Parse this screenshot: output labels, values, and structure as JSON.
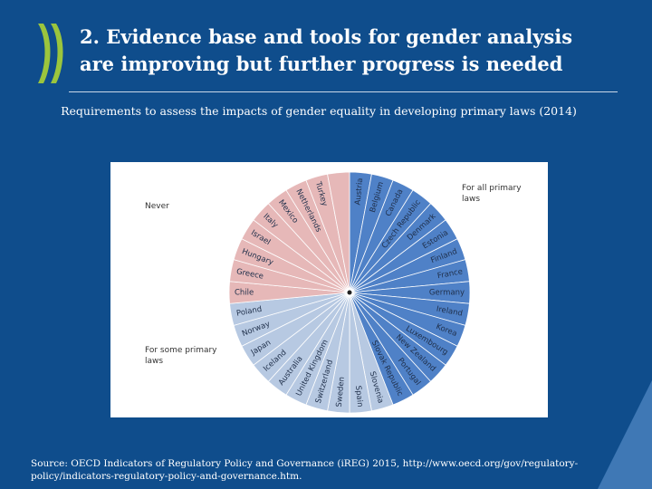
{
  "header": {
    "title_line1": "2. Evidence base and tools for gender analysis",
    "title_line2": "are improving but further progress is needed",
    "logo_icon": "oecd-logo-icon"
  },
  "chart_data": {
    "type": "pie",
    "title": "Requirements to assess the impacts of gender equality in developing primary laws (2014)",
    "groups": [
      {
        "name": "For all primary laws",
        "color": "#4f81c7",
        "count": 15
      },
      {
        "name": "For some primary laws",
        "color": "#b7c9e2",
        "count": 10
      },
      {
        "name": "Never",
        "color": "#e6b8b8",
        "count": 9
      }
    ],
    "slices": [
      {
        "label": "Austria",
        "group": "For all primary laws",
        "value": 1
      },
      {
        "label": "Belgium",
        "group": "For all primary laws",
        "value": 1
      },
      {
        "label": "Canada",
        "group": "For all primary laws",
        "value": 1
      },
      {
        "label": "Czech Republic",
        "group": "For all primary laws",
        "value": 1
      },
      {
        "label": "Denmark",
        "group": "For all primary laws",
        "value": 1
      },
      {
        "label": "Estonia",
        "group": "For all primary laws",
        "value": 1
      },
      {
        "label": "Finland",
        "group": "For all primary laws",
        "value": 1
      },
      {
        "label": "France",
        "group": "For all primary laws",
        "value": 1
      },
      {
        "label": "Germany",
        "group": "For all primary laws",
        "value": 1
      },
      {
        "label": "Ireland",
        "group": "For all primary laws",
        "value": 1
      },
      {
        "label": "Korea",
        "group": "For all primary laws",
        "value": 1
      },
      {
        "label": "Luxembourg",
        "group": "For all primary laws",
        "value": 1
      },
      {
        "label": "New Zealand",
        "group": "For all primary laws",
        "value": 1
      },
      {
        "label": "Portugal",
        "group": "For all primary laws",
        "value": 1
      },
      {
        "label": "Slovak Republic",
        "group": "For all primary laws",
        "value": 1
      },
      {
        "label": "Slovenia",
        "group": "For some primary laws",
        "value": 1
      },
      {
        "label": "Spain",
        "group": "For some primary laws",
        "value": 1
      },
      {
        "label": "Sweden",
        "group": "For some primary laws",
        "value": 1
      },
      {
        "label": "Switzerland",
        "group": "For some primary laws",
        "value": 1
      },
      {
        "label": "United Kingdom",
        "group": "For some primary laws",
        "value": 1
      },
      {
        "label": "Australia",
        "group": "For some primary laws",
        "value": 1
      },
      {
        "label": "Iceland",
        "group": "For some primary laws",
        "value": 1
      },
      {
        "label": "Japan",
        "group": "For some primary laws",
        "value": 1
      },
      {
        "label": "Norway",
        "group": "For some primary laws",
        "value": 1
      },
      {
        "label": "Poland",
        "group": "For some primary laws",
        "value": 1
      },
      {
        "label": "Chile",
        "group": "Never",
        "value": 1
      },
      {
        "label": "Greece",
        "group": "Never",
        "value": 1
      },
      {
        "label": "Hungary",
        "group": "Never",
        "value": 1
      },
      {
        "label": "Israel",
        "group": "Never",
        "value": 1
      },
      {
        "label": "Italy",
        "group": "Never",
        "value": 1
      },
      {
        "label": "Mexico",
        "group": "Never",
        "value": 1
      },
      {
        "label": "Netherlands",
        "group": "Never",
        "value": 1
      },
      {
        "label": "Turkey",
        "group": "Never",
        "value": 1
      },
      {
        "label": "",
        "group": "Never",
        "value": 1
      }
    ],
    "legend": [
      {
        "text_line1": "For all primary",
        "text_line2": "laws",
        "placement": "top-right"
      },
      {
        "text_line1": "For some primary",
        "text_line2": "laws",
        "placement": "bottom-left"
      },
      {
        "text_line1": "Never",
        "text_line2": "",
        "placement": "top-left"
      }
    ]
  },
  "footer": {
    "source_line1": "Source: OECD Indicators of Regulatory Policy and Governance (iREG) 2015, http://www.oecd.org/gov/regulatory-",
    "source_line2": "policy/indicators-regulatory-policy-and-governance.htm."
  },
  "colors": {
    "background": "#0f4d8c",
    "logo": "#9bc53d",
    "corner_accent": "#3f78b5"
  }
}
